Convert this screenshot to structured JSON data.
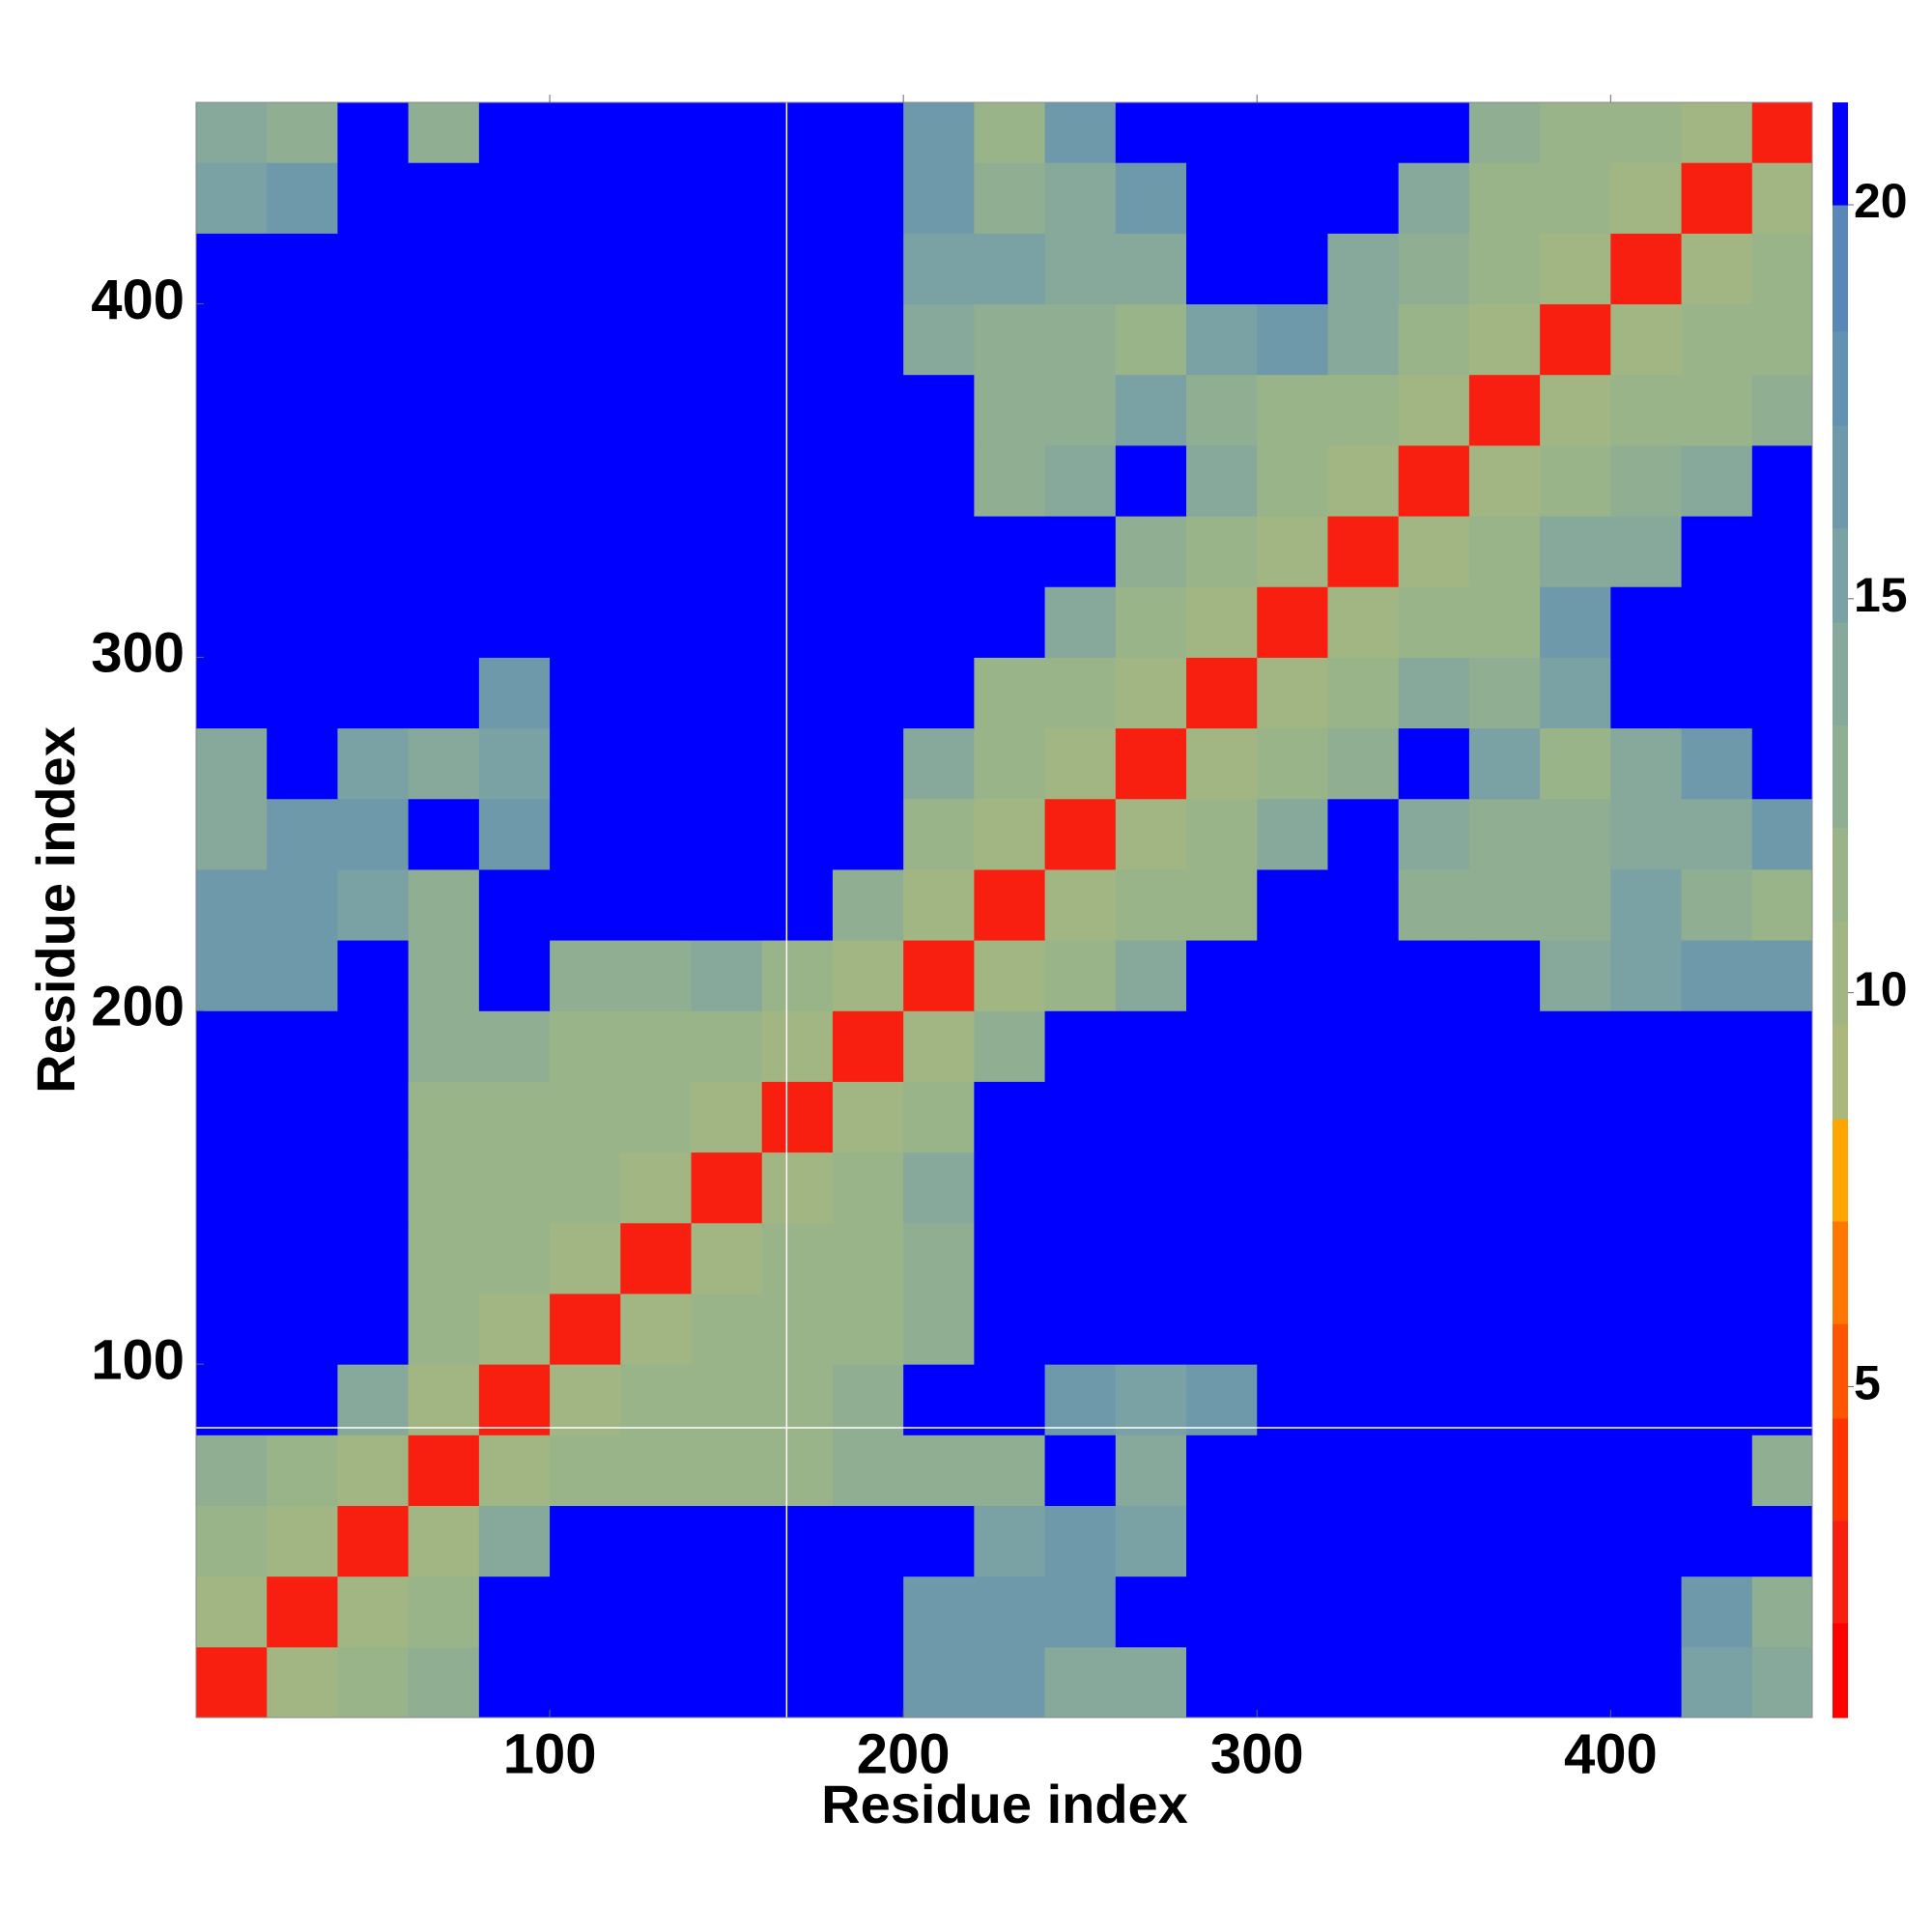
{
  "chart_data": {
    "type": "heatmap",
    "xlabel": "Residue index",
    "ylabel": "Residue index",
    "xlim": [
      0,
      457
    ],
    "ylim": [
      0,
      457
    ],
    "xticks": [
      100,
      200,
      300,
      400
    ],
    "yticks": [
      100,
      200,
      300,
      400
    ],
    "bins": [
      0,
      20,
      40,
      60,
      80,
      100,
      120,
      140,
      160,
      180,
      200,
      220,
      240,
      260,
      280,
      300,
      320,
      340,
      360,
      380,
      400,
      420,
      440,
      457
    ],
    "z": [
      [
        3,
        10,
        11,
        13,
        21,
        21,
        21,
        21,
        21,
        21,
        17,
        16,
        14,
        14,
        21,
        21,
        21,
        21,
        21,
        21,
        21,
        15,
        14
      ],
      [
        10,
        3,
        10,
        11,
        21,
        21,
        21,
        21,
        21,
        21,
        16,
        17,
        16,
        21,
        21,
        21,
        21,
        21,
        21,
        21,
        21,
        17,
        13
      ],
      [
        11,
        10,
        3,
        10,
        14,
        21,
        21,
        21,
        21,
        21,
        21,
        15,
        16,
        15,
        21,
        21,
        21,
        21,
        21,
        21,
        21,
        21,
        21
      ],
      [
        13,
        11,
        10,
        3,
        10,
        11,
        12,
        12,
        12,
        13,
        13,
        13,
        21,
        14,
        21,
        21,
        21,
        21,
        21,
        21,
        21,
        21,
        13
      ],
      [
        21,
        21,
        14,
        10,
        3,
        10,
        11,
        12,
        12,
        13,
        21,
        21,
        16,
        15,
        17,
        21,
        21,
        21,
        21,
        21,
        21,
        21,
        21
      ],
      [
        21,
        21,
        21,
        11,
        10,
        3,
        10,
        11,
        11,
        12,
        13,
        21,
        21,
        21,
        21,
        21,
        21,
        21,
        21,
        21,
        21,
        21,
        21
      ],
      [
        21,
        21,
        21,
        12,
        11,
        10,
        3,
        10,
        11,
        12,
        13,
        21,
        21,
        21,
        21,
        21,
        21,
        21,
        21,
        21,
        21,
        21,
        21
      ],
      [
        21,
        21,
        21,
        12,
        12,
        11,
        10,
        3,
        10,
        11,
        14,
        21,
        21,
        21,
        21,
        21,
        21,
        21,
        21,
        21,
        21,
        21,
        21
      ],
      [
        21,
        21,
        21,
        12,
        12,
        11,
        11,
        10,
        3,
        10,
        12,
        21,
        21,
        21,
        21,
        21,
        21,
        21,
        21,
        21,
        21,
        21,
        21
      ],
      [
        21,
        21,
        21,
        13,
        13,
        12,
        12,
        11,
        10,
        3,
        10,
        13,
        21,
        21,
        21,
        21,
        21,
        21,
        21,
        21,
        21,
        21,
        21
      ],
      [
        17,
        16,
        21,
        13,
        21,
        13,
        13,
        14,
        12,
        10,
        3,
        10,
        12,
        14,
        21,
        21,
        21,
        21,
        21,
        14,
        15,
        16,
        16
      ],
      [
        16,
        17,
        15,
        13,
        21,
        21,
        21,
        21,
        21,
        13,
        10,
        3,
        10,
        11,
        12,
        21,
        21,
        13,
        13,
        13,
        15,
        13,
        12
      ],
      [
        14,
        16,
        16,
        21,
        16,
        21,
        21,
        21,
        21,
        21,
        12,
        10,
        3,
        10,
        11,
        14,
        21,
        14,
        13,
        13,
        14,
        14,
        17
      ],
      [
        14,
        21,
        15,
        14,
        15,
        21,
        21,
        21,
        21,
        21,
        14,
        11,
        10,
        3,
        10,
        12,
        13,
        21,
        15,
        12,
        14,
        16,
        21
      ],
      [
        21,
        21,
        21,
        21,
        17,
        21,
        21,
        21,
        21,
        21,
        21,
        12,
        11,
        10,
        3,
        10,
        12,
        14,
        13,
        15,
        21,
        21,
        21
      ],
      [
        21,
        21,
        21,
        21,
        21,
        21,
        21,
        21,
        21,
        21,
        21,
        21,
        14,
        12,
        10,
        3,
        10,
        11,
        12,
        16,
        21,
        21,
        21
      ],
      [
        21,
        21,
        21,
        21,
        21,
        21,
        21,
        21,
        21,
        21,
        21,
        21,
        21,
        13,
        12,
        10,
        3,
        10,
        11,
        14,
        14,
        21,
        21
      ],
      [
        21,
        21,
        21,
        21,
        21,
        21,
        21,
        21,
        21,
        21,
        21,
        13,
        14,
        21,
        14,
        11,
        10,
        3,
        10,
        12,
        13,
        14,
        21
      ],
      [
        21,
        21,
        21,
        21,
        21,
        21,
        21,
        21,
        21,
        21,
        21,
        13,
        13,
        15,
        13,
        12,
        11,
        10,
        3,
        10,
        11,
        11,
        13
      ],
      [
        21,
        21,
        21,
        21,
        21,
        21,
        21,
        21,
        21,
        21,
        14,
        13,
        13,
        12,
        15,
        16,
        14,
        12,
        10,
        3,
        10,
        11,
        12
      ],
      [
        21,
        21,
        21,
        21,
        21,
        21,
        21,
        21,
        21,
        21,
        15,
        15,
        14,
        14,
        21,
        21,
        14,
        13,
        11,
        10,
        3,
        10,
        11
      ],
      [
        15,
        17,
        21,
        21,
        21,
        21,
        21,
        21,
        21,
        21,
        16,
        13,
        14,
        16,
        21,
        21,
        21,
        14,
        11,
        11,
        10,
        3,
        10
      ],
      [
        14,
        13,
        21,
        13,
        21,
        21,
        21,
        21,
        21,
        21,
        16,
        12,
        17,
        21,
        21,
        21,
        21,
        21,
        13,
        12,
        11,
        10,
        3
      ]
    ],
    "vlines": [
      167
    ],
    "hlines": [
      82
    ],
    "levels": [
      0.8,
      2,
      3.3,
      4.6,
      5.8,
      7.1,
      8.4,
      9.6,
      10.9,
      12.1,
      13.4,
      14.7,
      15.9,
      17.2,
      18.4,
      20,
      21.3
    ],
    "colors": [
      "#ff0000",
      "#f81e10",
      "#ff3300",
      "#ff5500",
      "#ff7700",
      "#ffa500",
      "#aab87c",
      "#a2b683",
      "#9ab48a",
      "#90ae92",
      "#86a99b",
      "#7aa1a3",
      "#6e99ab",
      "#6391b2",
      "#5887b8",
      "#0000ff"
    ],
    "cticks": [
      5,
      10,
      15,
      20
    ]
  }
}
